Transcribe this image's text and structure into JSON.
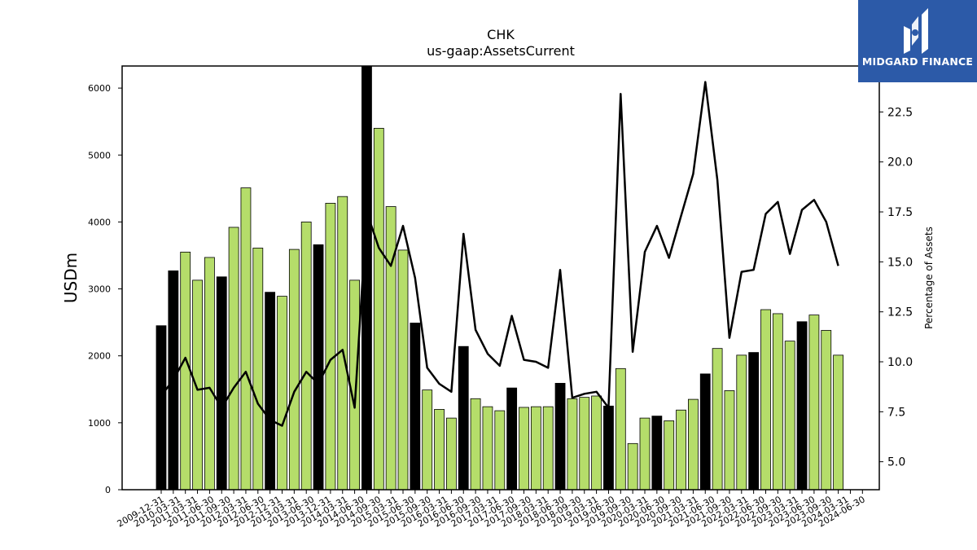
{
  "chart_data": {
    "type": "bar+line",
    "title": "CHK",
    "subtitle": "us-gaap:AssetsCurrent",
    "ylabel": "USDm",
    "y2label": "Percentage of Assets",
    "ylim": [
      0,
      6330
    ],
    "y2lim": [
      3.6,
      24.8
    ],
    "yticks": [
      0,
      1000,
      2000,
      3000,
      4000,
      5000,
      6000
    ],
    "y2ticks": [
      5.0,
      7.5,
      10.0,
      12.5,
      15.0,
      17.5,
      20.0,
      22.5
    ],
    "x": [
      "2009-12-31",
      "2010-03-31",
      "2010-06-30",
      "2010-09-30",
      "2010-12-31",
      "2011-03-31",
      "2011-06-30",
      "2011-09-30",
      "2011-12-31",
      "2012-03-31",
      "2012-06-30",
      "2012-09-30",
      "2012-12-31",
      "2013-03-31",
      "2013-06-30",
      "2013-09-30",
      "2013-12-31",
      "2014-03-31",
      "2014-06-30",
      "2014-09-30",
      "2014-12-31",
      "2015-03-31",
      "2015-06-30",
      "2015-09-30",
      "2015-12-31",
      "2016-03-31",
      "2016-06-30",
      "2016-09-30",
      "2016-12-31",
      "2017-03-31",
      "2017-06-30",
      "2017-09-30",
      "2017-12-31",
      "2018-03-31",
      "2018-06-30",
      "2018-09-30",
      "2018-12-31",
      "2019-03-31",
      "2019-06-30",
      "2019-09-30",
      "2019-12-31",
      "2020-03-31",
      "2020-06-30",
      "2020-09-30",
      "2020-12-31",
      "2021-03-31",
      "2021-06-30",
      "2021-09-30",
      "2021-12-31",
      "2022-03-31",
      "2022-06-30",
      "2022-09-30",
      "2022-12-31",
      "2023-03-31",
      "2023-06-30",
      "2023-09-30",
      "2023-12-31",
      "2024-03-31",
      "2024-06-30"
    ],
    "tick_labels": [
      "2009-12-31",
      "2010-03-31",
      "2011-03-31",
      "2011-06-30",
      "2011-09-30",
      "2012-03-31",
      "2012-06-30",
      "2012-12-31",
      "2013-03-31",
      "2013-06-30",
      "2013-12-31",
      "2014-03-31",
      "2014-06-30",
      "2014-09-30",
      "2015-03-31",
      "2015-06-30",
      "2015-09-30",
      "2016-03-31",
      "2016-06-30",
      "2016-09-30",
      "2017-03-31",
      "2017-06-30",
      "2017-09-30",
      "2018-03-31",
      "2018-06-30",
      "2018-09-30",
      "2019-03-31",
      "2019-06-30",
      "2019-09-30",
      "2020-03-31",
      "2020-06-30",
      "2020-09-30",
      "2021-03-31",
      "2021-06-30",
      "2021-09-30",
      "2022-03-31",
      "2022-06-30",
      "2022-09-30",
      "2023-03-31",
      "2023-06-30",
      "2023-09-30",
      "2024-03-31",
      "2024-06-30"
    ],
    "series": [
      {
        "kind": "bar",
        "values": [
          2450,
          3270,
          3550,
          3130,
          3470,
          3180,
          3920,
          4510,
          3610,
          2950,
          2890,
          3590,
          4000,
          3660,
          4280,
          4380,
          3130,
          6330,
          5400,
          4230,
          3580,
          2490,
          1490,
          1200,
          1070,
          2140,
          1360,
          1240,
          1180,
          1520,
          1230,
          1240,
          1240,
          1590,
          1360,
          1380,
          1400,
          1250,
          1810,
          690,
          1070,
          1100,
          1030,
          1190,
          1350,
          1730,
          2110,
          1480,
          2010,
          2050,
          2690,
          2630,
          2220,
          2510,
          2610,
          2380,
          2010,
          null,
          null
        ],
        "year_end": [
          true,
          true,
          false,
          false,
          false,
          true,
          false,
          false,
          false,
          true,
          false,
          false,
          false,
          true,
          false,
          false,
          false,
          true,
          false,
          false,
          false,
          true,
          false,
          false,
          false,
          true,
          false,
          false,
          false,
          true,
          false,
          false,
          false,
          true,
          false,
          false,
          false,
          true,
          false,
          false,
          false,
          true,
          false,
          false,
          false,
          true,
          false,
          false,
          false,
          true,
          false,
          false,
          false,
          true,
          false,
          false,
          false,
          false,
          false
        ]
      },
      {
        "kind": "line",
        "axis": "right",
        "values": [
          8.3,
          9.1,
          10.2,
          8.6,
          8.7,
          7.7,
          8.7,
          9.5,
          7.9,
          7.1,
          6.8,
          8.5,
          9.5,
          8.9,
          10.1,
          10.6,
          7.7,
          17.5,
          15.7,
          14.8,
          16.8,
          14.2,
          9.7,
          8.9,
          8.5,
          16.4,
          11.6,
          10.4,
          9.8,
          12.3,
          10.1,
          10.0,
          9.7,
          14.6,
          8.2,
          8.4,
          8.5,
          7.7,
          23.4,
          10.5,
          15.5,
          16.8,
          15.2,
          17.3,
          19.4,
          24.0,
          19.1,
          11.2,
          14.5,
          14.6,
          17.4,
          18.0,
          15.4,
          17.6,
          18.1,
          17.0,
          14.8,
          null,
          null
        ]
      }
    ],
    "colors": {
      "bar": "#b5dd6a",
      "bar_year_end": "#000000",
      "line": "#000000"
    },
    "grid": false
  },
  "branding": {
    "name": "MIDGARD FINANCE",
    "background": "#2c5aa8"
  }
}
